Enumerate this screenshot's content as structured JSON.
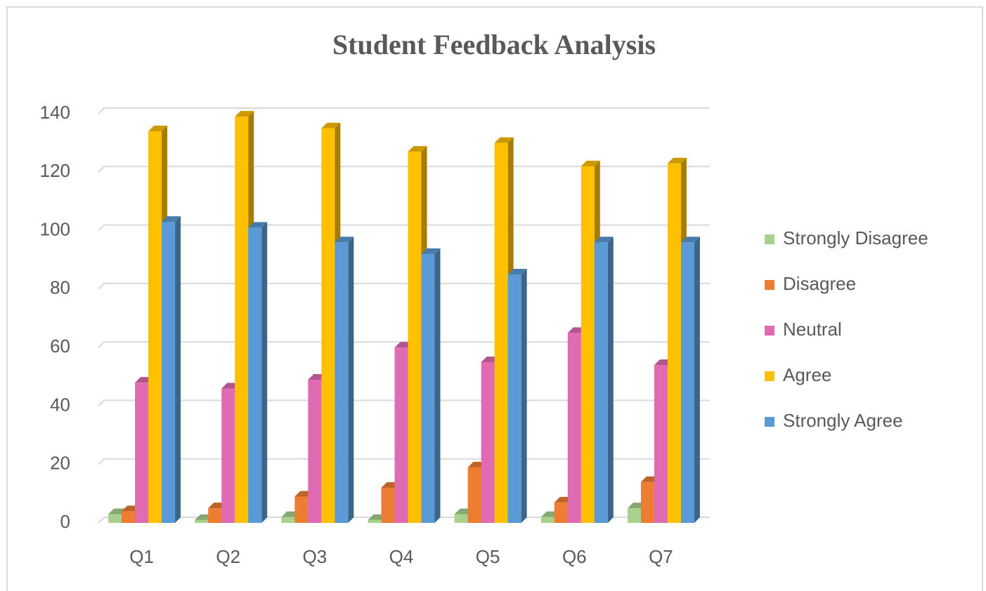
{
  "chart_data": {
    "type": "bar3d",
    "title": "Student Feedback Analysis",
    "categories": [
      "Q1",
      "Q2",
      "Q3",
      "Q4",
      "Q5",
      "Q6",
      "Q7"
    ],
    "series": [
      {
        "name": "Strongly Disagree",
        "color": "#a9d18e",
        "values": [
          3,
          1,
          2,
          1,
          3,
          2,
          5
        ]
      },
      {
        "name": "Disagree",
        "color": "#ed7d31",
        "values": [
          4,
          5,
          9,
          12,
          19,
          7,
          14
        ]
      },
      {
        "name": "Neutral",
        "color": "#e06bb3",
        "values": [
          48,
          46,
          49,
          60,
          55,
          65,
          54
        ]
      },
      {
        "name": "Agree",
        "color": "#ffc000",
        "values": [
          134,
          139,
          135,
          127,
          130,
          122,
          123
        ]
      },
      {
        "name": "Strongly Agree",
        "color": "#5b9bd5",
        "values": [
          103,
          101,
          96,
          92,
          85,
          96,
          96
        ]
      }
    ],
    "ylim": [
      0,
      140
    ],
    "yticks": [
      0,
      20,
      40,
      60,
      80,
      100,
      120,
      140
    ],
    "grid": true,
    "legend": "right"
  }
}
